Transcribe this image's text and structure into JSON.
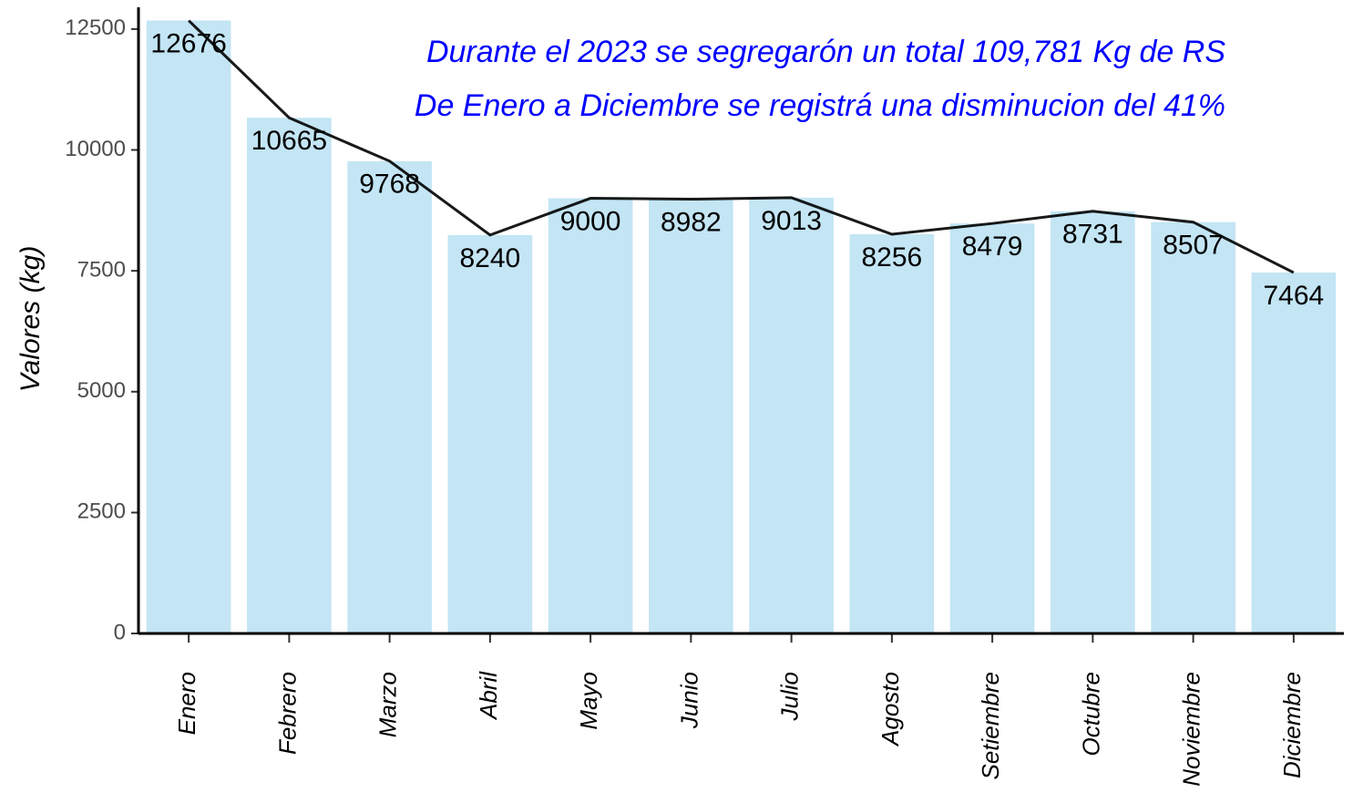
{
  "chart_data": {
    "type": "bar",
    "annotations": [
      "Durante el 2023 se segregarón un total 109,781 Kg de RS",
      "De Enero a Diciembre se registrá una disminucion del 41%"
    ],
    "y_label": "Valores (kg)",
    "categories": [
      "Enero",
      "Febrero",
      "Marzo",
      "Abril",
      "Mayo",
      "Junio",
      "Julio",
      "Agosto",
      "Setiembre",
      "Octubre",
      "Noviembre",
      "Diciembre"
    ],
    "values": [
      12676,
      10665,
      9768,
      8240,
      9000,
      8982,
      9013,
      8256,
      8479,
      8731,
      8507,
      7464
    ],
    "color": "#c3e5f4",
    "line_color": "#000000",
    "annotation_color": "#0000ff",
    "ylim": [
      0,
      12950
    ],
    "yticks": [
      0,
      2500,
      5000,
      7500,
      10000,
      12500
    ],
    "grid": false
  }
}
